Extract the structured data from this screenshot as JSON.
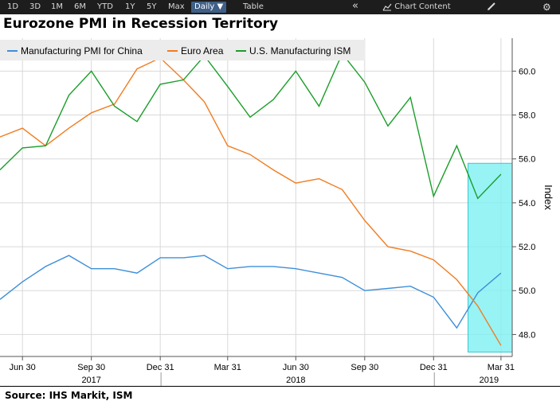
{
  "toolbar": {
    "ranges": [
      "1D",
      "3D",
      "1M",
      "6M",
      "YTD",
      "1Y",
      "5Y",
      "Max"
    ],
    "frequency": "Daily ▼",
    "table": "Table",
    "collapse": "«",
    "chart_content": "Chart Content",
    "edit_icon": "pencil-icon",
    "settings_icon": "gear-icon"
  },
  "title": "Eurozone PMI in Recession Territory",
  "source": "Source: IHS Markit, ISM",
  "colors": {
    "background": "#ffffff",
    "toolbar": "#1d1d1d",
    "grid": "#d9d9d9",
    "highlight": "#7ef0f2",
    "china": "#3d8fd9",
    "euro": "#f07d22",
    "us": "#1a9e2a"
  },
  "chart_data": {
    "type": "line",
    "title": "Eurozone PMI in Recession Territory",
    "ylabel": "Index",
    "ylim": [
      47.0,
      61.5
    ],
    "yticks": [
      48.0,
      50.0,
      52.0,
      54.0,
      56.0,
      58.0,
      60.0
    ],
    "ytick_labels": [
      "48.0",
      "50.0",
      "52.0",
      "54.0",
      "56.0",
      "58.0",
      "60.0"
    ],
    "xlim": [
      "2017-05-31",
      "2019-04-15"
    ],
    "x_ticks": [
      {
        "date": "2017-06-30",
        "label": "Jun 30"
      },
      {
        "date": "2017-09-30",
        "label": "Sep 30"
      },
      {
        "date": "2017-12-31",
        "label": "Dec 31"
      },
      {
        "date": "2018-03-31",
        "label": "Mar 31"
      },
      {
        "date": "2018-06-30",
        "label": "Jun 30"
      },
      {
        "date": "2018-09-30",
        "label": "Sep 30"
      },
      {
        "date": "2018-12-31",
        "label": "Dec 31"
      },
      {
        "date": "2019-03-31",
        "label": "Mar 31"
      }
    ],
    "x_years": [
      {
        "label": "2017",
        "date": "2017-09-30"
      },
      {
        "label": "2018",
        "date": "2018-06-30"
      },
      {
        "label": "2019",
        "date": "2019-03-15"
      }
    ],
    "legend_position": "top-left",
    "grid": true,
    "highlight": {
      "x_start": "2019-02-15",
      "x_end": "2019-04-15",
      "y_start": 47.2,
      "y_end": 55.8
    },
    "x": [
      "2017-05-31",
      "2017-06-30",
      "2017-07-31",
      "2017-08-31",
      "2017-09-30",
      "2017-10-31",
      "2017-11-30",
      "2017-12-31",
      "2018-01-31",
      "2018-02-28",
      "2018-03-31",
      "2018-04-30",
      "2018-05-31",
      "2018-06-30",
      "2018-07-31",
      "2018-08-31",
      "2018-09-30",
      "2018-10-31",
      "2018-11-30",
      "2018-12-31",
      "2019-01-31",
      "2019-02-28",
      "2019-03-31"
    ],
    "series": [
      {
        "name": "Manufacturing PMI for China",
        "color": "#3d8fd9",
        "values": [
          49.6,
          50.4,
          51.1,
          51.6,
          51.0,
          51.0,
          50.8,
          51.5,
          51.5,
          51.6,
          51.0,
          51.1,
          51.1,
          51.0,
          50.8,
          50.6,
          50.0,
          50.1,
          50.2,
          49.7,
          48.3,
          49.9,
          50.8
        ]
      },
      {
        "name": "Euro Area",
        "color": "#f07d22",
        "values": [
          57.0,
          57.4,
          56.6,
          57.4,
          58.1,
          58.5,
          60.1,
          60.6,
          59.6,
          58.6,
          56.6,
          56.2,
          55.5,
          54.9,
          55.1,
          54.6,
          53.2,
          52.0,
          51.8,
          51.4,
          50.5,
          49.3,
          47.5
        ]
      },
      {
        "name": "U.S. Manufacturing ISM",
        "color": "#1a9e2a",
        "values": [
          55.5,
          56.5,
          56.6,
          58.9,
          60.0,
          58.4,
          57.7,
          59.4,
          59.6,
          60.7,
          59.3,
          57.9,
          58.7,
          60.0,
          58.4,
          60.8,
          59.5,
          57.5,
          58.8,
          54.3,
          56.6,
          54.2,
          55.3
        ]
      }
    ]
  }
}
